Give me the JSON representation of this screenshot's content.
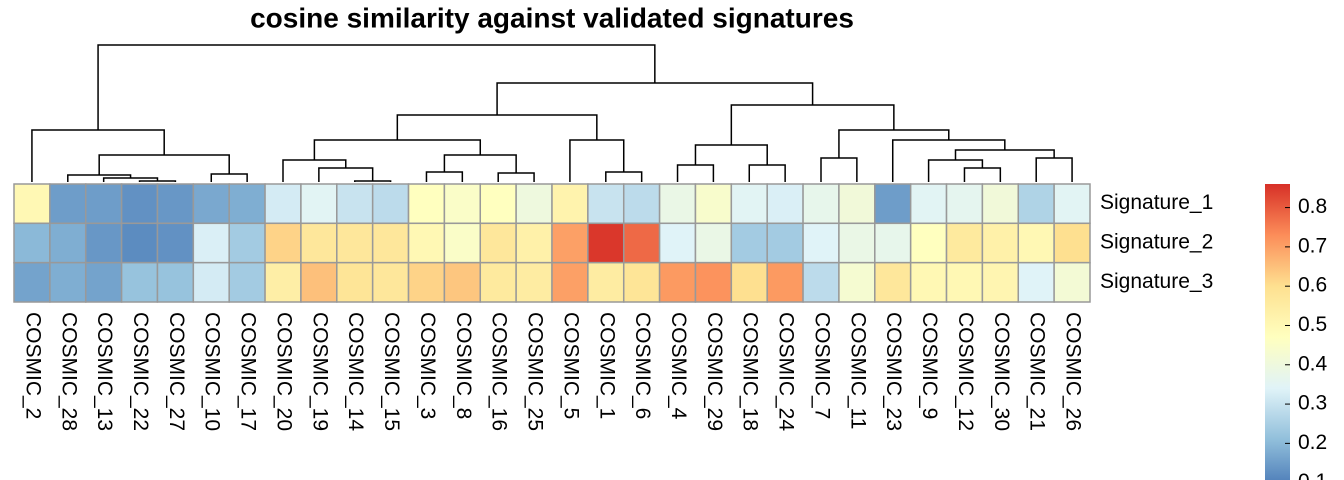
{
  "chart_data": {
    "type": "heatmap",
    "title": "cosine similarity against validated signatures",
    "rows": [
      "Signature_1",
      "Signature_2",
      "Signature_3"
    ],
    "columns": [
      "COSMIC_2",
      "COSMIC_28",
      "COSMIC_13",
      "COSMIC_22",
      "COSMIC_27",
      "COSMIC_10",
      "COSMIC_17",
      "COSMIC_20",
      "COSMIC_19",
      "COSMIC_14",
      "COSMIC_15",
      "COSMIC_3",
      "COSMIC_8",
      "COSMIC_16",
      "COSMIC_25",
      "COSMIC_5",
      "COSMIC_1",
      "COSMIC_6",
      "COSMIC_4",
      "COSMIC_29",
      "COSMIC_18",
      "COSMIC_24",
      "COSMIC_7",
      "COSMIC_11",
      "COSMIC_23",
      "COSMIC_9",
      "COSMIC_12",
      "COSMIC_30",
      "COSMIC_21",
      "COSMIC_26"
    ],
    "values": [
      [
        0.5,
        0.15,
        0.15,
        0.13,
        0.14,
        0.17,
        0.18,
        0.32,
        0.35,
        0.3,
        0.28,
        0.47,
        0.45,
        0.47,
        0.4,
        0.52,
        0.3,
        0.28,
        0.38,
        0.44,
        0.35,
        0.33,
        0.37,
        0.41,
        0.15,
        0.35,
        0.36,
        0.41,
        0.26,
        0.35
      ],
      [
        0.2,
        0.18,
        0.14,
        0.12,
        0.13,
        0.33,
        0.24,
        0.62,
        0.57,
        0.57,
        0.57,
        0.5,
        0.45,
        0.57,
        0.53,
        0.7,
        0.85,
        0.78,
        0.34,
        0.38,
        0.24,
        0.24,
        0.34,
        0.38,
        0.37,
        0.47,
        0.56,
        0.53,
        0.5,
        0.6
      ],
      [
        0.16,
        0.18,
        0.16,
        0.22,
        0.22,
        0.32,
        0.24,
        0.54,
        0.65,
        0.58,
        0.57,
        0.62,
        0.64,
        0.56,
        0.55,
        0.7,
        0.55,
        0.58,
        0.71,
        0.72,
        0.6,
        0.71,
        0.28,
        0.43,
        0.57,
        0.5,
        0.5,
        0.51,
        0.34,
        0.42
      ]
    ],
    "colors": [
      "#4575B4",
      "#91BFDB",
      "#E0F3F8",
      "#FFFFBF",
      "#FEE090",
      "#FC8D59",
      "#D73027"
    ],
    "colorlim": [
      0.08,
      0.86
    ],
    "colorticks": [
      0.1,
      0.2,
      0.3,
      0.4,
      0.5,
      0.6,
      0.7,
      0.8
    ]
  }
}
